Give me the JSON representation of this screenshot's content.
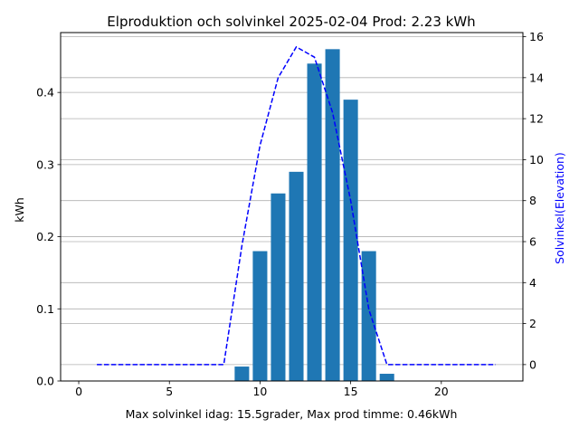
{
  "chart_data": {
    "type": "bar",
    "title": "Elproduktion och solvinkel 2025-02-04 Prod: 2.23 kWh",
    "xlabel": "Max solvinkel idag: 15.5grader, Max prod timme: 0.46kWh",
    "ylabel": "kWh",
    "y2label": "Solvinkel(Elevation)",
    "xlim": [
      -1,
      24.5
    ],
    "ylim": [
      0,
      0.483
    ],
    "y2lim": [
      -0.8,
      16.2
    ],
    "x_ticks": [
      0,
      5,
      10,
      15,
      20
    ],
    "y_ticks": [
      0.0,
      0.1,
      0.2,
      0.3,
      0.4
    ],
    "y2_ticks": [
      0,
      2,
      4,
      6,
      8,
      10,
      12,
      14,
      16
    ],
    "grid": "horizontal",
    "series": [
      {
        "axis": "left",
        "kind": "bar",
        "color": "#1f77b4",
        "bar_width": 0.8,
        "x": [
          9,
          10,
          11,
          12,
          13,
          14,
          15,
          16,
          17
        ],
        "values": [
          0.02,
          0.18,
          0.26,
          0.29,
          0.44,
          0.46,
          0.39,
          0.18,
          0.01
        ]
      },
      {
        "axis": "right",
        "kind": "line",
        "style": "dashed",
        "color": "#0000ff",
        "x": [
          1,
          2,
          3,
          4,
          5,
          6,
          7,
          8,
          9,
          10,
          11,
          12,
          13,
          14,
          15,
          16,
          17,
          18,
          19,
          20,
          21,
          22,
          23
        ],
        "values": [
          0,
          0,
          0,
          0,
          0,
          0,
          0,
          0,
          5.8,
          10.7,
          14.0,
          15.5,
          15.0,
          12.3,
          8.0,
          2.7,
          0,
          0,
          0,
          0,
          0,
          0,
          0
        ]
      }
    ]
  }
}
